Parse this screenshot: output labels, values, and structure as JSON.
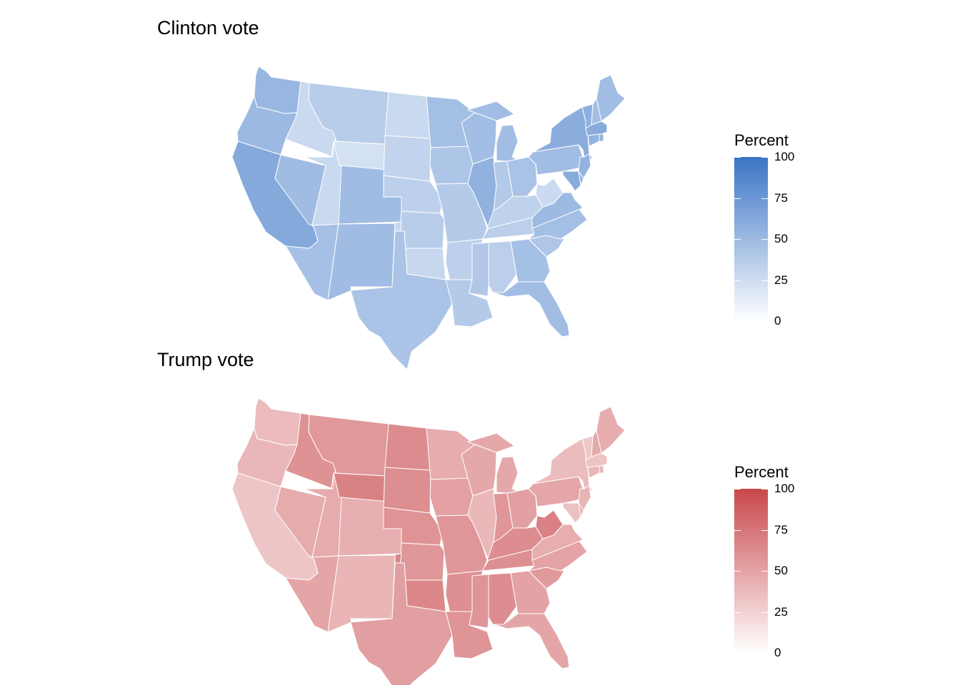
{
  "panels": [
    {
      "id": "clinton",
      "title": "Clinton vote",
      "legend": {
        "title": "Percent",
        "ticks": [
          "100",
          "75",
          "50",
          "25",
          "0"
        ],
        "color_low": "#ffffff",
        "color_high": "#3a74c5"
      },
      "state_values": {
        "WA": 52.5,
        "OR": 50.1,
        "CA": 61.7,
        "NV": 47.9,
        "ID": 27.5,
        "MT": 35.8,
        "WY": 21.6,
        "UT": 27.5,
        "AZ": 45.1,
        "CO": 48.2,
        "NM": 48.3,
        "ND": 27.2,
        "SD": 31.7,
        "NE": 33.7,
        "KS": 36.1,
        "OK": 28.9,
        "TX": 43.2,
        "MN": 46.4,
        "IA": 41.7,
        "MO": 38.1,
        "AR": 33.7,
        "LA": 38.4,
        "WI": 46.5,
        "IL": 55.8,
        "MI": 47.3,
        "IN": 37.9,
        "OH": 43.6,
        "KY": 32.7,
        "TN": 34.7,
        "MS": 40.1,
        "AL": 34.4,
        "GA": 45.6,
        "FL": 47.8,
        "SC": 40.7,
        "NC": 46.2,
        "VA": 49.8,
        "WV": 26.5,
        "PA": 47.5,
        "NY": 59.0,
        "VT": 56.7,
        "NH": 47.0,
        "ME": 47.8,
        "MA": 60.0,
        "RI": 54.4,
        "CT": 54.6,
        "NJ": 55.0,
        "DE": 53.4,
        "MD": 60.3
      }
    },
    {
      "id": "trump",
      "title": "Trump vote",
      "legend": {
        "title": "Percent",
        "ticks": [
          "100",
          "75",
          "50",
          "25",
          "0"
        ],
        "color_low": "#ffffff",
        "color_high": "#c8474b"
      },
      "state_values": {
        "WA": 36.8,
        "OR": 39.1,
        "CA": 31.6,
        "NV": 45.5,
        "ID": 59.3,
        "MT": 56.2,
        "WY": 68.2,
        "UT": 45.5,
        "AZ": 48.7,
        "CO": 43.3,
        "NM": 40.0,
        "ND": 63.0,
        "SD": 61.5,
        "NE": 58.7,
        "KS": 56.7,
        "OK": 65.3,
        "TX": 52.2,
        "MN": 44.9,
        "IA": 51.1,
        "MO": 56.8,
        "AR": 60.6,
        "LA": 58.1,
        "WI": 47.2,
        "IL": 38.8,
        "MI": 47.5,
        "IN": 56.8,
        "OH": 51.7,
        "KY": 62.5,
        "TN": 60.7,
        "MS": 57.9,
        "AL": 62.1,
        "GA": 50.8,
        "FL": 49.0,
        "SC": 54.9,
        "NC": 49.8,
        "VA": 44.4,
        "WV": 68.5,
        "PA": 48.2,
        "NY": 36.5,
        "VT": 30.3,
        "NH": 46.5,
        "ME": 44.9,
        "MA": 32.8,
        "RI": 38.9,
        "CT": 40.9,
        "NJ": 41.0,
        "DE": 41.7,
        "MD": 33.9
      }
    }
  ]
}
